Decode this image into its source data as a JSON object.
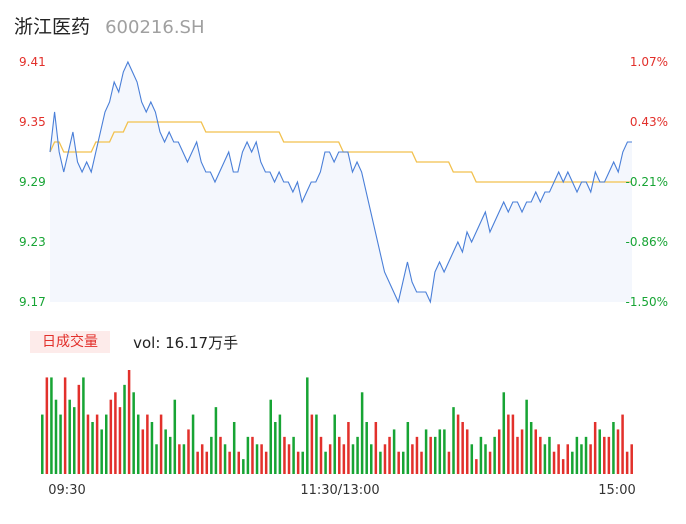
{
  "stock": {
    "name": "浙江医药",
    "code": "600216.SH"
  },
  "volume_panel": {
    "tab_label": "日成交量",
    "vol_text": "vol: 16.17万手"
  },
  "colors": {
    "price_line": "#4a7fd8",
    "avg_line": "#f2c14e",
    "up": "#e2302b",
    "down": "#17a434"
  },
  "chart_data": [
    {
      "type": "line",
      "yticks_left": [
        "9.41",
        "9.35",
        "9.29",
        "9.23",
        "9.17"
      ],
      "yticks_right": [
        "1.07%",
        "0.43%",
        "-0.21%",
        "-0.86%",
        "-1.50%"
      ],
      "ylim": [
        9.17,
        9.41
      ],
      "reference_price": 9.31,
      "series": [
        {
          "values": [
            9.32,
            9.36,
            9.32,
            9.3,
            9.32,
            9.34,
            9.31,
            9.3,
            9.31,
            9.3,
            9.32,
            9.34,
            9.36,
            9.37,
            9.39,
            9.38,
            9.4,
            9.41,
            9.4,
            9.39,
            9.37,
            9.36,
            9.37,
            9.36,
            9.34,
            9.33,
            9.34,
            9.33,
            9.33,
            9.32,
            9.31,
            9.32,
            9.33,
            9.31,
            9.3,
            9.3,
            9.29,
            9.3,
            9.31,
            9.32,
            9.3,
            9.3,
            9.32,
            9.33,
            9.32,
            9.33,
            9.31,
            9.3,
            9.3,
            9.29,
            9.3,
            9.29,
            9.29,
            9.28,
            9.29,
            9.27,
            9.28,
            9.29,
            9.29,
            9.3,
            9.32,
            9.32,
            9.31,
            9.32,
            9.32,
            9.32,
            9.3,
            9.31,
            9.3,
            9.28,
            9.26,
            9.24,
            9.22,
            9.2,
            9.19,
            9.18,
            9.17,
            9.19,
            9.21,
            9.19,
            9.18,
            9.18,
            9.18,
            9.17,
            9.2,
            9.21,
            9.2,
            9.21,
            9.22,
            9.23,
            9.22,
            9.24,
            9.23,
            9.24,
            9.25,
            9.26,
            9.24,
            9.25,
            9.26,
            9.27,
            9.26,
            9.27,
            9.27,
            9.26,
            9.27,
            9.27,
            9.28,
            9.27,
            9.28,
            9.28,
            9.29,
            9.3,
            9.29,
            9.3,
            9.29,
            9.28,
            9.29,
            9.29,
            9.28,
            9.3,
            9.29,
            9.29,
            9.3,
            9.31,
            9.3,
            9.32,
            9.33,
            9.33
          ]
        },
        {
          "values": [
            9.32,
            9.33,
            9.33,
            9.32,
            9.32,
            9.32,
            9.32,
            9.32,
            9.32,
            9.32,
            9.33,
            9.33,
            9.33,
            9.33,
            9.34,
            9.34,
            9.34,
            9.35,
            9.35,
            9.35,
            9.35,
            9.35,
            9.35,
            9.35,
            9.35,
            9.35,
            9.35,
            9.35,
            9.35,
            9.35,
            9.35,
            9.35,
            9.35,
            9.35,
            9.34,
            9.34,
            9.34,
            9.34,
            9.34,
            9.34,
            9.34,
            9.34,
            9.34,
            9.34,
            9.34,
            9.34,
            9.34,
            9.34,
            9.34,
            9.34,
            9.34,
            9.33,
            9.33,
            9.33,
            9.33,
            9.33,
            9.33,
            9.33,
            9.33,
            9.33,
            9.33,
            9.33,
            9.33,
            9.33,
            9.32,
            9.32,
            9.32,
            9.32,
            9.32,
            9.32,
            9.32,
            9.32,
            9.32,
            9.32,
            9.32,
            9.32,
            9.32,
            9.32,
            9.32,
            9.32,
            9.31,
            9.31,
            9.31,
            9.31,
            9.31,
            9.31,
            9.31,
            9.31,
            9.3,
            9.3,
            9.3,
            9.3,
            9.3,
            9.29,
            9.29,
            9.29,
            9.29,
            9.29,
            9.29,
            9.29,
            9.29,
            9.29,
            9.29,
            9.29,
            9.29,
            9.29,
            9.29,
            9.29,
            9.29,
            9.29,
            9.29,
            9.29,
            9.29,
            9.29,
            9.29,
            9.29,
            9.29,
            9.29,
            9.29,
            9.29,
            9.29,
            9.29,
            9.29,
            9.29,
            9.29,
            9.29,
            9.29,
            9.29
          ]
        }
      ]
    },
    {
      "type": "bar",
      "xticks": [
        "09:30",
        "11:30/13:00",
        "15:00"
      ],
      "values": [
        8,
        13,
        13,
        10,
        8,
        13,
        10,
        9,
        12,
        13,
        8,
        7,
        8,
        6,
        8,
        10,
        11,
        9,
        12,
        14,
        11,
        8,
        6,
        8,
        7,
        4,
        8,
        6,
        5,
        10,
        4,
        4,
        6,
        8,
        3,
        4,
        3,
        5,
        9,
        5,
        4,
        3,
        7,
        3,
        2,
        5,
        5,
        4,
        4,
        3,
        10,
        7,
        8,
        5,
        4,
        5,
        3,
        3,
        13,
        8,
        8,
        5,
        3,
        4,
        8,
        5,
        4,
        7,
        4,
        5,
        11,
        7,
        4,
        7,
        3,
        4,
        5,
        6,
        3,
        3,
        7,
        4,
        5,
        3,
        6,
        5,
        5,
        6,
        6,
        3,
        9,
        8,
        7,
        6,
        4,
        2,
        5,
        4,
        3,
        5,
        6,
        11,
        8,
        8,
        5,
        6,
        10,
        7,
        6,
        5,
        4,
        5,
        3,
        4,
        2,
        4,
        3,
        5,
        4,
        5,
        4,
        7,
        6,
        5,
        5,
        7,
        6,
        8,
        3,
        4
      ],
      "up_down": [
        "d",
        "u",
        "d",
        "d",
        "d",
        "u",
        "d",
        "d",
        "u",
        "d",
        "u",
        "d",
        "u",
        "d",
        "d",
        "u",
        "u",
        "u",
        "d",
        "u",
        "d",
        "d",
        "u",
        "u",
        "d",
        "d",
        "u",
        "d",
        "d",
        "d",
        "u",
        "d",
        "u",
        "d",
        "u",
        "u",
        "u",
        "d",
        "d",
        "u",
        "d",
        "u",
        "d",
        "u",
        "d",
        "d",
        "u",
        "d",
        "u",
        "u",
        "d",
        "d",
        "d",
        "u",
        "u",
        "d",
        "u",
        "d",
        "d",
        "u",
        "d",
        "u",
        "d",
        "u",
        "d",
        "u",
        "u",
        "u",
        "d",
        "d",
        "d",
        "d",
        "d",
        "u",
        "d",
        "u",
        "u",
        "d",
        "u",
        "d",
        "d",
        "u",
        "u",
        "u",
        "d",
        "u",
        "d",
        "d",
        "d",
        "u",
        "d",
        "u",
        "u",
        "u",
        "d",
        "u",
        "d",
        "d",
        "u",
        "d",
        "u",
        "d",
        "u",
        "u",
        "u",
        "u",
        "d",
        "d",
        "u",
        "u",
        "d",
        "d",
        "u",
        "u",
        "u",
        "u",
        "d",
        "d",
        "d",
        "d",
        "u",
        "u",
        "d",
        "u",
        "u",
        "d",
        "u",
        "u",
        "u",
        "u"
      ]
    }
  ]
}
